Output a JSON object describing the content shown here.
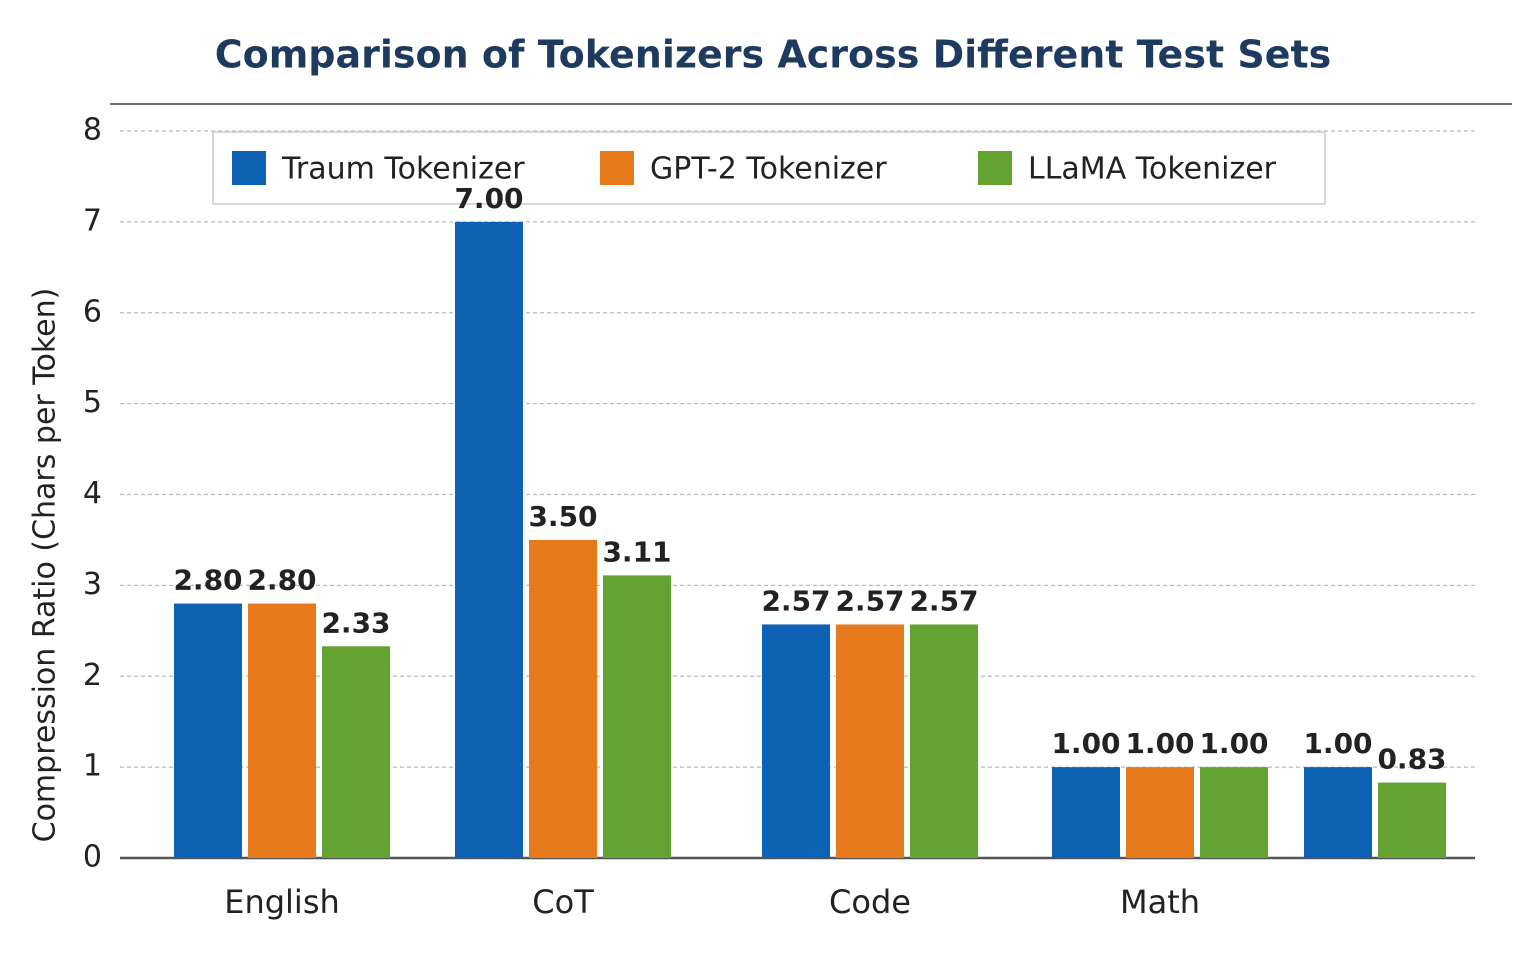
{
  "chart_data": {
    "type": "bar",
    "title": "Comparison of Tokenizers Across Different Test Sets",
    "y_label": "Compression Ratio (Chars per Token)",
    "categories": [
      "English",
      "CoT",
      "Code",
      "Math",
      null
    ],
    "series": [
      {
        "name": "Traum Tokenizer",
        "color": "#0d62b3",
        "values": [
          2.8,
          7,
          2.57,
          1,
          1
        ],
        "value_labels": [
          "2.80",
          "7.00",
          "2.57",
          "1.00",
          "1.00"
        ]
      },
      {
        "name": "GPT-2 Tokenizer",
        "color": "#e5791c",
        "values": [
          2.8,
          3.5,
          2.57,
          1,
          null
        ],
        "value_labels": [
          "2.80",
          "3.50",
          "2.57",
          "1.00",
          null
        ]
      },
      {
        "name": "LLaMA Tokenizer",
        "color": "#64a231",
        "values": [
          2.33,
          3.11,
          2.57,
          1,
          0.83
        ],
        "value_labels": [
          "2.33",
          "3.11",
          "2.57",
          "1.00",
          "0.83"
        ]
      }
    ],
    "ylim": [
      0,
      8
    ],
    "yticks": [
      0,
      1,
      2,
      3,
      4,
      5,
      6,
      7,
      8
    ],
    "grid": true
  }
}
